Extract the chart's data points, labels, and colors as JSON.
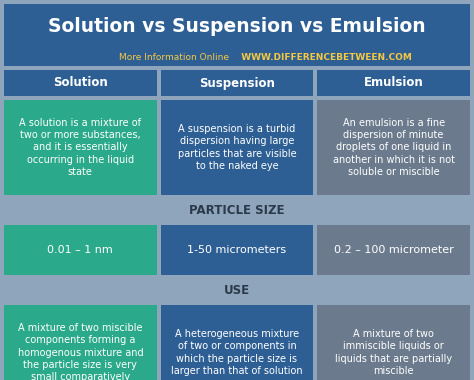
{
  "title": "Solution vs Suspension vs Emulsion",
  "subtitle_regular": "More Information Online",
  "subtitle_bold": "WWW.DIFFERENCEBETWEEN.COM",
  "bg_color": "#8fa5bc",
  "header_bg": "#2e5f94",
  "title_bg": "#2e5f94",
  "col_headers": [
    "Solution",
    "Suspension",
    "Emulsion"
  ],
  "row_labels": [
    "PARTICLE SIZE",
    "USE"
  ],
  "cell_colors": [
    "#2aaa8a",
    "#2e5f94",
    "#6b7b8d"
  ],
  "definitions": [
    "A solution is a mixture of\ntwo or more substances,\nand it is essentially\noccurring in the liquid\nstate",
    "A suspension is a turbid\ndispersion having large\nparticles that are visible\nto the naked eye",
    "An emulsion is a fine\ndispersion of minute\ndroplets of one liquid in\nanother in which it is not\nsoluble or miscible"
  ],
  "particle_sizes": [
    "0.01 – 1 nm",
    "1-50 micrometers",
    "0.2 – 100 micrometer"
  ],
  "uses": [
    "A mixture of two miscible\ncomponents forming a\nhomogenous mixture and\nthe particle size is very\nsmall comparatively",
    "A heterogeneous mixture\nof two or components in\nwhich the particle size is\nlarger than that of solution",
    "A mixture of two\nimmiscible liquids or\nliquids that are partially\nmiscible"
  ],
  "title_color": "#ffffff",
  "subtitle_color_regular": "#f5c842",
  "subtitle_color_bold": "#f5c842",
  "header_text_color": "#ffffff",
  "cell_text_color": "#ffffff",
  "row_label_color": "#2a3a4a",
  "title_fontsize": 13.5,
  "subtitle_fontsize": 6.5,
  "header_fontsize": 8.5,
  "cell_fontsize": 7.0,
  "row_label_fontsize": 8.5,
  "particle_fontsize": 8.0,
  "figw": 4.74,
  "figh": 3.8,
  "dpi": 100
}
